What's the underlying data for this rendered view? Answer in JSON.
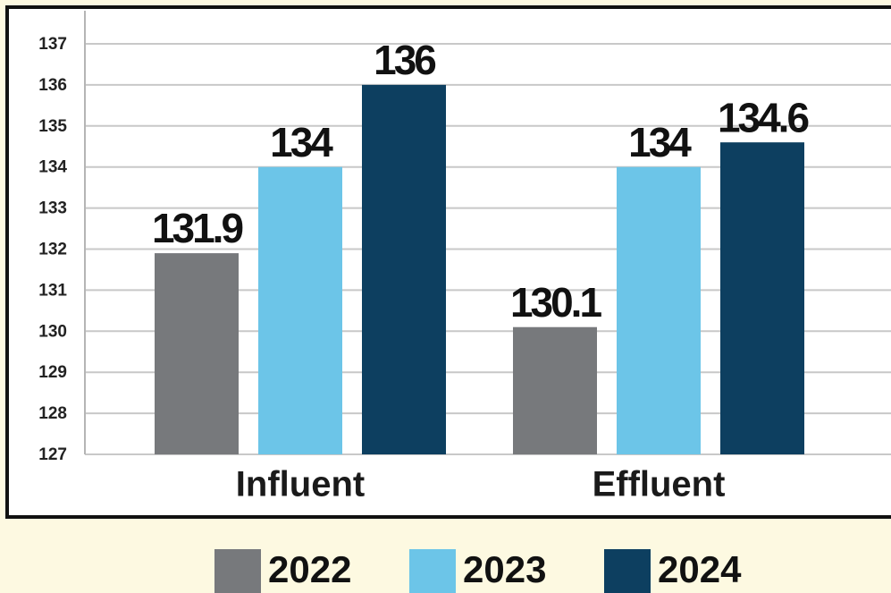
{
  "chart_data": {
    "type": "bar",
    "categories": [
      "Influent",
      "Effluent"
    ],
    "series": [
      {
        "name": "2022",
        "color": "#77797c",
        "values": [
          131.9,
          130.1
        ]
      },
      {
        "name": "2023",
        "color": "#6cc5e8",
        "values": [
          134,
          134
        ]
      },
      {
        "name": "2024",
        "color": "#0d3f60",
        "values": [
          136,
          134.6
        ]
      }
    ],
    "ylim": [
      127,
      137
    ],
    "yticks": [
      127,
      128,
      129,
      130,
      131,
      132,
      133,
      134,
      135,
      136,
      137
    ],
    "grid": true,
    "legend": "bottom"
  }
}
